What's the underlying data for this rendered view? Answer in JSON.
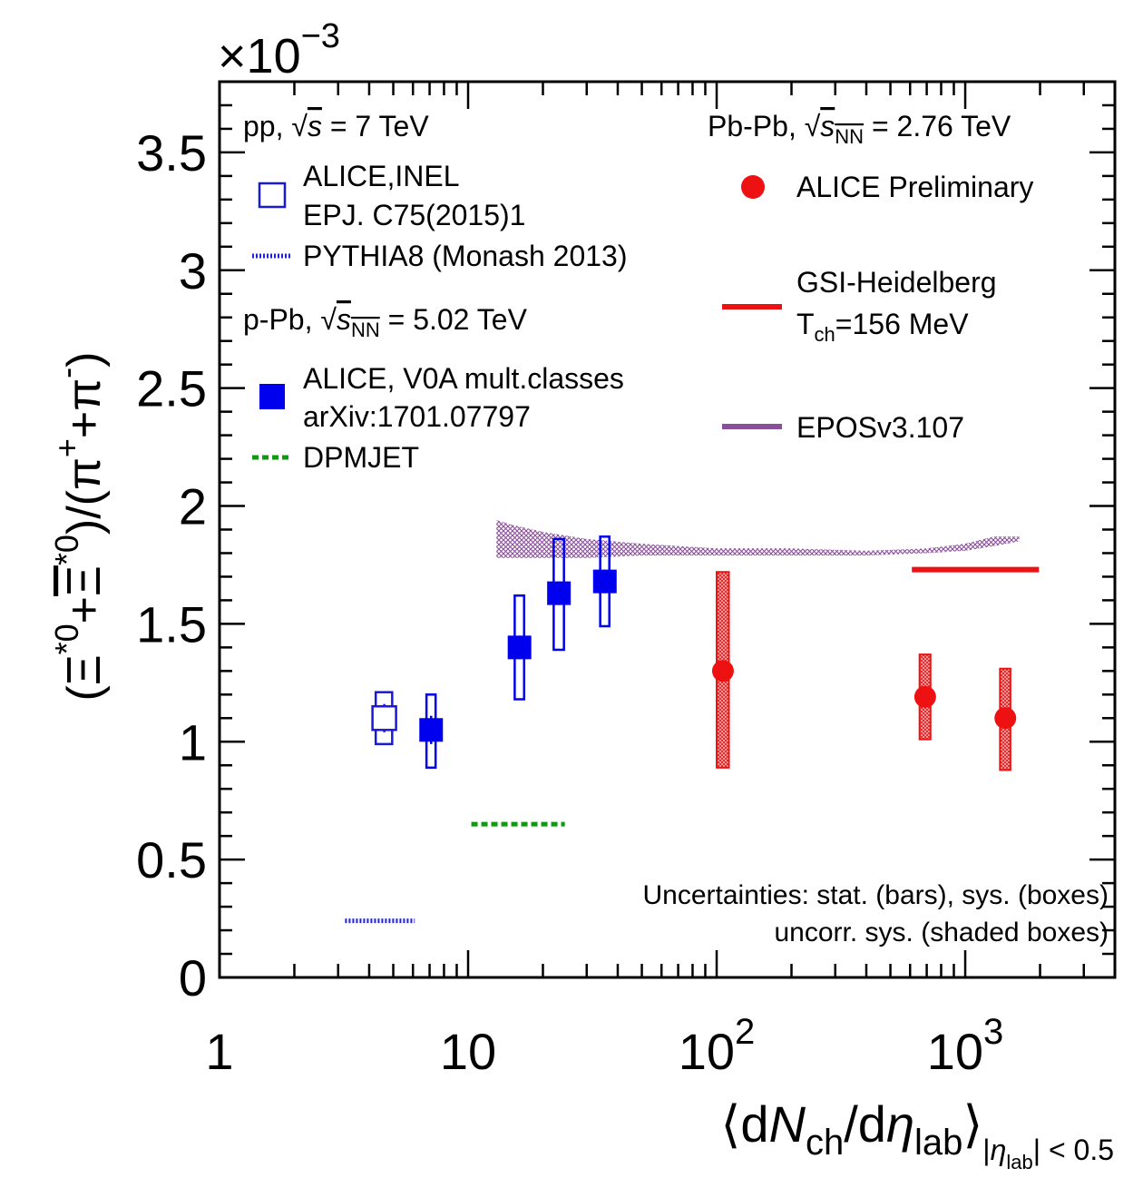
{
  "chart_data": {
    "type": "scatter",
    "x_log_scale": true,
    "xlim": [
      1,
      4000
    ],
    "ylim": [
      0,
      3.8
    ],
    "y_multiplier": "×10",
    "y_multiplier_exp": "−3",
    "x_tick_labels": [
      {
        "value": 1,
        "base": "1",
        "exp": ""
      },
      {
        "value": 10,
        "base": "10",
        "exp": ""
      },
      {
        "value": 100,
        "base": "10",
        "exp": "2"
      },
      {
        "value": 1000,
        "base": "10",
        "exp": "3"
      }
    ],
    "y_tick_labels": [
      "0",
      "0.5",
      "1",
      "1.5",
      "2",
      "2.5",
      "3",
      "3.5"
    ],
    "y_tick_values": [
      0,
      0.5,
      1,
      1.5,
      2,
      2.5,
      3,
      3.5
    ],
    "xlabel": {
      "open": "⟨d",
      "N": "N",
      "ch": "ch",
      "slash": "/d",
      "eta": "η",
      "lab": "lab",
      "close": "⟩",
      "sub_a": "|",
      "sub_eta": "η",
      "sub_lab": "lab",
      "sub_b": "| < 0.5"
    },
    "ylabel": {
      "p1": "(Ξ",
      "s1": "*0",
      "p2": "+",
      "xibar": "Ξ",
      "s2": "*0",
      "p3": ")/(π",
      "s3": "+",
      "p4": "+π",
      "s4": "-",
      "p5": ")"
    },
    "systems": {
      "pp": {
        "sys": "pp, ",
        "root": "√",
        "s": "s",
        "rest": " = 7 TeV"
      },
      "ppb": {
        "sys": "p-Pb, ",
        "root": "√",
        "s": "s",
        "nn": "NN",
        "rest": " = 5.02 TeV"
      },
      "pbpb": {
        "sys": "Pb-Pb, ",
        "root": "√",
        "s": "s",
        "nn": "NN",
        "rest": " = 2.76 TeV"
      }
    },
    "legend": {
      "pp_data": [
        "ALICE,INEL",
        "EPJ. C75(2015)1"
      ],
      "pythia": "PYTHIA8 (Monash 2013)",
      "ppb_data": [
        "ALICE, V0A mult.classes",
        "arXiv:1701.07797"
      ],
      "dpmjet": "DPMJET",
      "pbpb_data": "ALICE Preliminary",
      "gsi": [
        "GSI-Heidelberg",
        "T",
        "ch",
        "=156 MeV"
      ],
      "epos": "EPOSv3.107"
    },
    "annotation": [
      "Uncertainties: stat. (bars), sys. (boxes)",
      "uncorr. sys. (shaded boxes)"
    ],
    "colors": {
      "pp": "#1a1ad6",
      "ppb": "#0000ee",
      "pbpb": "#ee1111",
      "dpmjet": "#119911",
      "epos": "#8a4f9a",
      "pythia": "#2020dd"
    },
    "series": [
      {
        "name": "ALICE,INEL",
        "system": "pp",
        "marker": "open-square",
        "points": [
          {
            "x": 4.6,
            "y": 1.1,
            "stat_lo": 1.04,
            "stat_hi": 1.16,
            "sys_lo": 0.99,
            "sys_hi": 1.21,
            "x_lo": 4.25,
            "x_hi": 4.95
          }
        ]
      },
      {
        "name": "ALICE, V0A mult.classes",
        "system": "p-Pb",
        "marker": "filled-square",
        "points": [
          {
            "x": 7.1,
            "y": 1.05,
            "stat_lo": 0.99,
            "stat_hi": 1.11,
            "sys_lo": 0.89,
            "sys_hi": 1.2,
            "x_lo": 6.8,
            "x_hi": 7.4
          },
          {
            "x": 16.1,
            "y": 1.4,
            "stat_lo": 1.35,
            "stat_hi": 1.45,
            "sys_lo": 1.18,
            "sys_hi": 1.62,
            "x_lo": 15.4,
            "x_hi": 16.8
          },
          {
            "x": 23.2,
            "y": 1.63,
            "stat_lo": 1.58,
            "stat_hi": 1.68,
            "sys_lo": 1.39,
            "sys_hi": 1.86,
            "x_lo": 22.1,
            "x_hi": 24.3
          },
          {
            "x": 35.5,
            "y": 1.68,
            "stat_lo": 1.63,
            "stat_hi": 1.73,
            "sys_lo": 1.49,
            "sys_hi": 1.87,
            "x_lo": 34.0,
            "x_hi": 37.0
          }
        ]
      },
      {
        "name": "ALICE Preliminary",
        "system": "Pb-Pb",
        "marker": "filled-circle",
        "points": [
          {
            "x": 106,
            "y": 1.3,
            "stat_lo": 1.28,
            "stat_hi": 1.32,
            "sys_lo": 0.89,
            "sys_hi": 1.72,
            "x_lo": 100,
            "x_hi": 112
          },
          {
            "x": 690,
            "y": 1.19,
            "stat_lo": 1.17,
            "stat_hi": 1.21,
            "sys_lo": 1.01,
            "sys_hi": 1.37,
            "x_lo": 655,
            "x_hi": 725
          },
          {
            "x": 1450,
            "y": 1.1,
            "stat_lo": 1.08,
            "stat_hi": 1.12,
            "sys_lo": 0.88,
            "sys_hi": 1.31,
            "x_lo": 1380,
            "x_hi": 1520
          }
        ]
      }
    ],
    "models": [
      {
        "name": "PYTHIA8 (Monash 2013)",
        "style": "dotted-line",
        "x": [
          3.2,
          6.1
        ],
        "y": 0.24
      },
      {
        "name": "DPMJET",
        "style": "dashed-line",
        "x": [
          10.3,
          24.5
        ],
        "y": 0.65
      },
      {
        "name": "GSI-Heidelberg",
        "style": "solid-line",
        "x": [
          610,
          1980
        ],
        "y": 1.73
      },
      {
        "name": "EPOSv3.107",
        "style": "hatched-band",
        "x": [
          13,
          15,
          20,
          30,
          50,
          100,
          200,
          400,
          700,
          1000,
          1300,
          1650
        ],
        "lo": [
          1.78,
          1.78,
          1.78,
          1.78,
          1.79,
          1.79,
          1.79,
          1.79,
          1.8,
          1.81,
          1.83,
          1.85
        ],
        "hi": [
          1.94,
          1.92,
          1.89,
          1.86,
          1.84,
          1.82,
          1.82,
          1.81,
          1.82,
          1.84,
          1.87,
          1.87
        ]
      }
    ]
  }
}
